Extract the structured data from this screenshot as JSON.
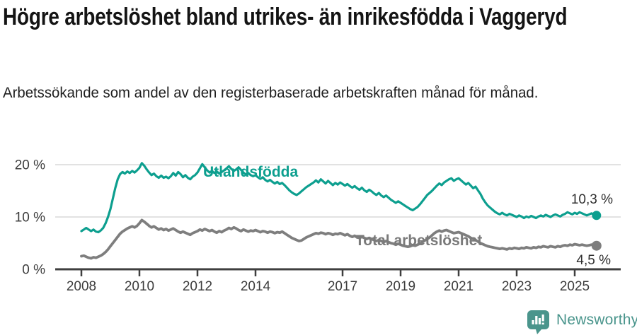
{
  "header": {
    "title": "Högre arbetslöshet bland utrikes- än inrikesfödda i Vaggeryd",
    "subtitle": "Arbetssökande som andel av den registerbaserade arbetskraften månad för månad."
  },
  "chart_data": {
    "type": "line",
    "title": "Högre arbetslöshet bland utrikes- än inrikesfödda i Vaggeryd",
    "subtitle": "Arbetssökande som andel av den registerbaserade arbetskraften månad för månad.",
    "x_unit": "month",
    "x_range": [
      2008.0,
      2025.75
    ],
    "ylim": [
      0,
      21
    ],
    "grid": "horizontal",
    "legend_position": "inline-labels",
    "y_ticks": [
      {
        "value": 0,
        "label": "0 %"
      },
      {
        "value": 10,
        "label": "10 %"
      },
      {
        "value": 20,
        "label": "20 %"
      }
    ],
    "x_ticks": [
      {
        "value": 2008,
        "label": "2008"
      },
      {
        "value": 2010,
        "label": "2010"
      },
      {
        "value": 2012,
        "label": "2012"
      },
      {
        "value": 2014,
        "label": "2014"
      },
      {
        "value": 2017,
        "label": "2017"
      },
      {
        "value": 2019,
        "label": "2019"
      },
      {
        "value": 2021,
        "label": "2021"
      },
      {
        "value": 2023,
        "label": "2023"
      },
      {
        "value": 2025,
        "label": "2025"
      }
    ],
    "series": [
      {
        "id": "utlandsfodda",
        "name": "Utlandsfödda",
        "label_text": "Utlandsfödda",
        "color": "#0d9f8f",
        "end_label": "10,3 %",
        "end_value": 10.3,
        "monthly": [
          {
            "year": 2008,
            "values": [
              7.3,
              7.6,
              7.9,
              7.6,
              7.3,
              7.6,
              7.2,
              7.1,
              7.4,
              7.9,
              8.8,
              10.0
            ]
          },
          {
            "year": 2009,
            "values": [
              11.5,
              13.5,
              15.5,
              17.2,
              18.2,
              18.6,
              18.3,
              18.7,
              18.4,
              18.8,
              18.5,
              18.9
            ]
          },
          {
            "year": 2010,
            "values": [
              19.4,
              20.3,
              19.8,
              19.1,
              18.5,
              18.0,
              18.3,
              17.8,
              17.5,
              17.9,
              17.5,
              17.7
            ]
          },
          {
            "year": 2011,
            "values": [
              17.4,
              17.8,
              18.4,
              17.9,
              18.6,
              18.2,
              17.6,
              18.0,
              17.5,
              17.2,
              17.7,
              18.0
            ]
          },
          {
            "year": 2012,
            "values": [
              18.5,
              19.3,
              20.1,
              19.5,
              18.9,
              18.5,
              18.8,
              18.4,
              18.7,
              18.3,
              18.6,
              18.9
            ]
          },
          {
            "year": 2013,
            "values": [
              19.3,
              19.7,
              19.2,
              18.8,
              19.1,
              19.5,
              19.0,
              18.5,
              18.1,
              18.4,
              18.0,
              17.8
            ]
          },
          {
            "year": 2014,
            "values": [
              18.0,
              17.6,
              17.3,
              17.6,
              17.1,
              16.8,
              17.1,
              16.7,
              16.4,
              16.7,
              16.3,
              16.5
            ]
          },
          {
            "year": 2015,
            "values": [
              16.1,
              15.6,
              15.1,
              14.7,
              14.4,
              14.2,
              14.5,
              14.9,
              15.3,
              15.7,
              16.0,
              16.3
            ]
          },
          {
            "year": 2016,
            "values": [
              16.6,
              17.0,
              16.6,
              17.2,
              16.8,
              16.4,
              16.9,
              16.5,
              16.1,
              16.5,
              16.2,
              16.6
            ]
          },
          {
            "year": 2017,
            "values": [
              16.3,
              16.0,
              16.3,
              15.9,
              15.6,
              15.9,
              15.5,
              15.2,
              15.6,
              15.1,
              14.8,
              15.2
            ]
          },
          {
            "year": 2018,
            "values": [
              14.9,
              14.5,
              14.2,
              14.6,
              14.1,
              13.8,
              14.1,
              13.7,
              13.3,
              13.0,
              12.7,
              13.0
            ]
          },
          {
            "year": 2019,
            "values": [
              12.7,
              12.4,
              12.1,
              11.8,
              11.5,
              11.3,
              11.6,
              11.9,
              12.4,
              13.0,
              13.6,
              14.2
            ]
          },
          {
            "year": 2020,
            "values": [
              14.6,
              15.0,
              15.5,
              16.0,
              16.4,
              16.1,
              16.6,
              16.9,
              17.2,
              17.4,
              16.9,
              17.2
            ]
          },
          {
            "year": 2021,
            "values": [
              17.4,
              17.0,
              16.6,
              16.2,
              16.5,
              16.0,
              15.5,
              15.8,
              15.1,
              14.4,
              13.5,
              12.8
            ]
          },
          {
            "year": 2022,
            "values": [
              12.2,
              11.8,
              11.4,
              11.0,
              10.7,
              10.5,
              10.8,
              10.5,
              10.3,
              10.6,
              10.4,
              10.2
            ]
          },
          {
            "year": 2023,
            "values": [
              10.0,
              10.3,
              10.1,
              9.8,
              10.1,
              9.9,
              10.2,
              10.0,
              9.8,
              10.1,
              10.3,
              10.1
            ]
          },
          {
            "year": 2024,
            "values": [
              10.4,
              10.2,
              10.0,
              10.3,
              10.5,
              10.3,
              10.1,
              10.4,
              10.6,
              10.9,
              10.7,
              10.5
            ]
          },
          {
            "year": 2025,
            "values": [
              10.8,
              10.6,
              10.9,
              10.7,
              10.5,
              10.3,
              10.5,
              10.7,
              10.4,
              10.3
            ]
          }
        ]
      },
      {
        "id": "total",
        "name": "Total arbetslöshet",
        "label_text": "Total arbetslöshet",
        "color": "#7e7e7e",
        "end_label": "4,5 %",
        "end_value": 4.5,
        "monthly": [
          {
            "year": 2008,
            "values": [
              2.5,
              2.6,
              2.4,
              2.2,
              2.1,
              2.3,
              2.2,
              2.4,
              2.6,
              2.9,
              3.3,
              3.8
            ]
          },
          {
            "year": 2009,
            "values": [
              4.4,
              5.0,
              5.6,
              6.2,
              6.8,
              7.2,
              7.5,
              7.8,
              8.0,
              8.2,
              8.0,
              8.3
            ]
          },
          {
            "year": 2010,
            "values": [
              8.8,
              9.4,
              9.1,
              8.7,
              8.3,
              8.0,
              8.2,
              7.9,
              7.6,
              7.8,
              7.5,
              7.7
            ]
          },
          {
            "year": 2011,
            "values": [
              7.4,
              7.6,
              7.8,
              7.5,
              7.2,
              7.0,
              7.2,
              7.0,
              6.8,
              6.6,
              6.9,
              7.1
            ]
          },
          {
            "year": 2012,
            "values": [
              7.3,
              7.6,
              7.4,
              7.7,
              7.5,
              7.3,
              7.5,
              7.2,
              7.0,
              7.3,
              7.1,
              7.4
            ]
          },
          {
            "year": 2013,
            "values": [
              7.6,
              7.9,
              7.7,
              8.0,
              7.8,
              7.5,
              7.3,
              7.6,
              7.4,
              7.2,
              7.4,
              7.3
            ]
          },
          {
            "year": 2014,
            "values": [
              7.5,
              7.3,
              7.1,
              7.3,
              7.2,
              7.0,
              7.2,
              7.1,
              6.9,
              7.1,
              7.0,
              7.2
            ]
          },
          {
            "year": 2015,
            "values": [
              6.9,
              6.6,
              6.3,
              6.0,
              5.8,
              5.6,
              5.4,
              5.5,
              5.8,
              6.1,
              6.3,
              6.5
            ]
          },
          {
            "year": 2016,
            "values": [
              6.7,
              6.9,
              6.8,
              7.0,
              6.9,
              6.7,
              6.9,
              6.8,
              6.6,
              6.8,
              6.7,
              6.9
            ]
          },
          {
            "year": 2017,
            "values": [
              6.7,
              6.5,
              6.7,
              6.4,
              6.2,
              6.4,
              6.1,
              6.0,
              6.2,
              6.0,
              5.8,
              6.0
            ]
          },
          {
            "year": 2018,
            "values": [
              5.8,
              5.6,
              5.4,
              5.6,
              5.4,
              5.2,
              5.4,
              5.2,
              5.0,
              4.9,
              4.7,
              4.9
            ]
          },
          {
            "year": 2019,
            "values": [
              4.7,
              4.5,
              4.4,
              4.3,
              4.4,
              4.6,
              4.5,
              4.7,
              4.9,
              5.2,
              5.5,
              5.8
            ]
          },
          {
            "year": 2020,
            "values": [
              6.1,
              6.5,
              6.9,
              7.2,
              7.4,
              7.2,
              7.4,
              7.5,
              7.3,
              7.1,
              6.9,
              7.0
            ]
          },
          {
            "year": 2021,
            "values": [
              7.1,
              6.9,
              6.7,
              6.5,
              6.3,
              6.0,
              5.8,
              5.6,
              5.3,
              5.0,
              4.8,
              4.6
            ]
          },
          {
            "year": 2022,
            "values": [
              4.4,
              4.3,
              4.2,
              4.1,
              4.0,
              3.9,
              4.0,
              3.9,
              3.8,
              4.0,
              3.9,
              4.1
            ]
          },
          {
            "year": 2023,
            "values": [
              4.0,
              3.9,
              4.1,
              4.0,
              4.2,
              4.1,
              4.0,
              4.2,
              4.1,
              4.3,
              4.2,
              4.4
            ]
          },
          {
            "year": 2024,
            "values": [
              4.3,
              4.2,
              4.4,
              4.3,
              4.2,
              4.4,
              4.3,
              4.5,
              4.6,
              4.5,
              4.7,
              4.6
            ]
          },
          {
            "year": 2025,
            "values": [
              4.8,
              4.7,
              4.6,
              4.7,
              4.6,
              4.5,
              4.6,
              4.7,
              4.6,
              4.5
            ]
          }
        ]
      }
    ],
    "colors": {
      "series_teal": "#0d9f8f",
      "series_gray": "#7e7e7e",
      "axis": "#3f3f3f",
      "gridline": "#d8d8d8",
      "tick_label": "#3c3c3c",
      "value_label": "#2e2e2e"
    }
  },
  "footer": {
    "brand": "Newsworthy",
    "brand_color": "#4a958c",
    "logo_icon": "speech-bubble-bar-chart-icon"
  }
}
